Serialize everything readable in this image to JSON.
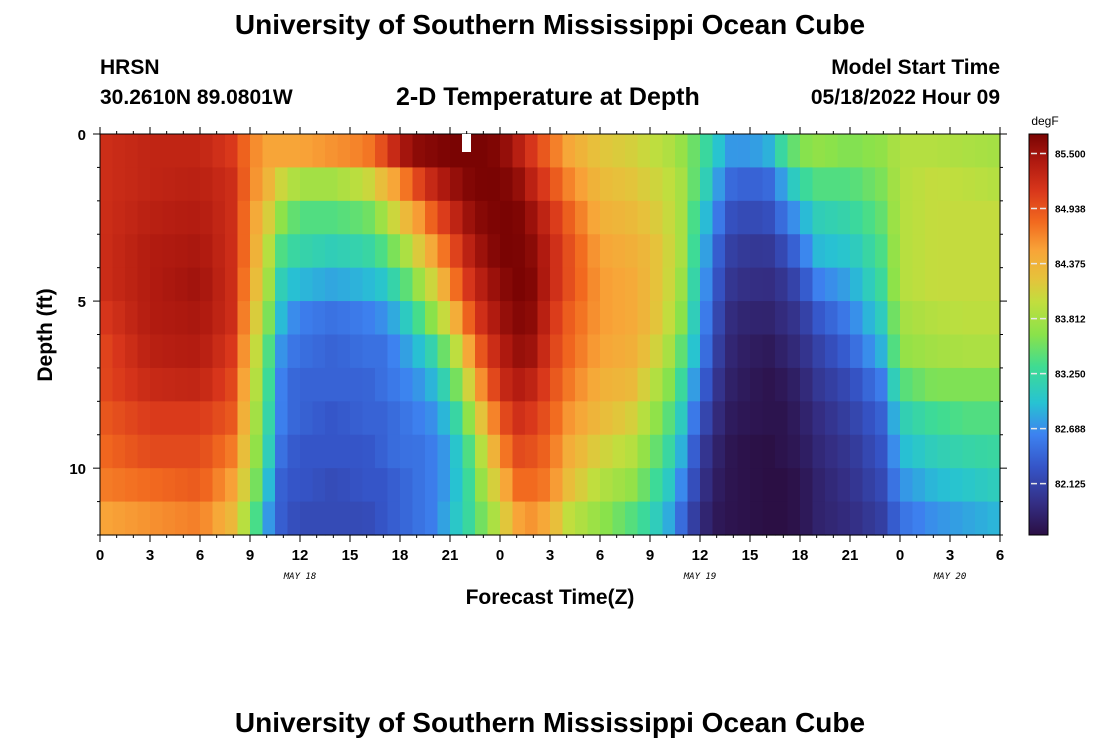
{
  "header": {
    "title": "University of Southern Mississippi Ocean Cube",
    "station": "HRSN",
    "coords": "30.2610N  89.0801W",
    "subtitle": "2-D Temperature at Depth",
    "start_label": "Model Start Time",
    "start_value": "05/18/2022 Hour 09"
  },
  "footer": {
    "title": "University of Southern Mississippi Ocean Cube"
  },
  "chart_data": {
    "type": "heatmap",
    "title": "2-D Temperature at Depth",
    "xlabel": "Forecast Time(Z)",
    "ylabel": "Depth (ft)",
    "x_unit": "hours since 05/18/2022 00Z",
    "xlim": [
      0,
      54
    ],
    "ylim": [
      0,
      12
    ],
    "y_inverted": true,
    "x_tick_labels": [
      "0",
      "3",
      "6",
      "9",
      "12",
      "15",
      "18",
      "21",
      "0",
      "3",
      "6",
      "9",
      "12",
      "15",
      "18",
      "21",
      "0",
      "3",
      "6"
    ],
    "y_tick_labels": [
      "0",
      "5",
      "10"
    ],
    "y_ticks": [
      0,
      5,
      10
    ],
    "date_labels": [
      {
        "label": "MAY 18",
        "hour": 12
      },
      {
        "label": "MAY 19",
        "hour": 36
      },
      {
        "label": "MAY 20",
        "hour": 51
      }
    ],
    "colorbar": {
      "unit": "degF",
      "min": 81.6,
      "max": 85.7,
      "labels": [
        "85.500",
        "84.938",
        "84.375",
        "83.812",
        "83.250",
        "82.688",
        "82.125"
      ],
      "values": [
        85.5,
        84.938,
        84.375,
        83.812,
        83.25,
        82.688,
        82.125
      ]
    },
    "grid": false,
    "z_units": "degF",
    "depth_rows_ft": [
      0.5,
      1.5,
      2.5,
      3.5,
      4.5,
      5.5,
      6.5,
      7.5,
      8.5,
      9.5,
      10.5,
      11.5
    ],
    "time_keyframes_hours": [
      0,
      3,
      6,
      8,
      9,
      10,
      11,
      12,
      14,
      16,
      17,
      18,
      19,
      20,
      21,
      22,
      23,
      24,
      25,
      26,
      27,
      28,
      30,
      32,
      33,
      34,
      35,
      36,
      37,
      38,
      40,
      41,
      42,
      43,
      45,
      47,
      48,
      50,
      52,
      54
    ],
    "time_keyframe_values": [
      [
        85.2,
        85.2,
        85.2,
        85.2,
        85.2,
        85.1,
        85.0,
        85.0,
        84.9,
        84.8,
        84.7,
        84.5
      ],
      [
        85.3,
        85.3,
        85.35,
        85.4,
        85.4,
        85.4,
        85.35,
        85.25,
        85.1,
        85.0,
        84.8,
        84.6
      ],
      [
        85.3,
        85.35,
        85.4,
        85.45,
        85.5,
        85.45,
        85.4,
        85.3,
        85.1,
        85.0,
        84.9,
        84.7
      ],
      [
        85.1,
        85.2,
        85.2,
        85.2,
        85.2,
        85.2,
        85.1,
        85.0,
        84.9,
        84.7,
        84.5,
        84.3
      ],
      [
        84.7,
        84.7,
        84.6,
        84.6,
        84.5,
        84.4,
        84.3,
        84.2,
        84.1,
        84.0,
        83.9,
        83.7
      ],
      [
        84.5,
        84.4,
        84.2,
        84.0,
        83.9,
        83.7,
        83.5,
        83.4,
        83.3,
        83.2,
        83.0,
        82.8
      ],
      [
        84.5,
        84.0,
        83.6,
        83.3,
        83.0,
        82.8,
        82.6,
        82.5,
        82.5,
        82.4,
        82.3,
        82.3
      ],
      [
        84.5,
        83.8,
        83.4,
        83.2,
        82.9,
        82.6,
        82.5,
        82.4,
        82.4,
        82.3,
        82.3,
        82.2
      ],
      [
        84.6,
        83.8,
        83.4,
        83.1,
        82.8,
        82.5,
        82.4,
        82.4,
        82.3,
        82.3,
        82.2,
        82.2
      ],
      [
        84.7,
        84.0,
        83.5,
        83.2,
        82.9,
        82.6,
        82.5,
        82.4,
        82.4,
        82.3,
        82.3,
        82.2
      ],
      [
        85.0,
        84.3,
        83.8,
        83.4,
        83.0,
        82.7,
        82.5,
        82.5,
        82.4,
        82.4,
        82.3,
        82.3
      ],
      [
        85.4,
        84.6,
        84.2,
        83.7,
        83.3,
        82.9,
        82.7,
        82.6,
        82.5,
        82.5,
        82.4,
        82.4
      ],
      [
        85.6,
        85.0,
        84.5,
        84.1,
        83.7,
        83.3,
        82.9,
        82.7,
        82.6,
        82.5,
        82.5,
        82.5
      ],
      [
        85.65,
        85.3,
        84.9,
        84.5,
        84.1,
        83.7,
        83.2,
        82.9,
        82.7,
        82.6,
        82.6,
        82.6
      ],
      [
        85.7,
        85.5,
        85.2,
        84.9,
        84.6,
        84.2,
        83.7,
        83.3,
        83.0,
        82.8,
        82.8,
        82.9
      ],
      [
        85.7,
        85.65,
        85.5,
        85.3,
        85.1,
        84.8,
        84.4,
        84.0,
        83.6,
        83.3,
        83.2,
        83.2
      ],
      [
        85.7,
        85.7,
        85.65,
        85.55,
        85.4,
        85.25,
        85.0,
        84.7,
        84.3,
        84.0,
        83.8,
        83.6
      ],
      [
        85.65,
        85.7,
        85.7,
        85.7,
        85.6,
        85.5,
        85.35,
        85.2,
        84.9,
        84.6,
        84.3,
        84.0
      ],
      [
        85.4,
        85.6,
        85.7,
        85.7,
        85.7,
        85.65,
        85.55,
        85.4,
        85.2,
        85.0,
        84.8,
        84.5
      ],
      [
        85.1,
        85.3,
        85.5,
        85.6,
        85.65,
        85.6,
        85.5,
        85.3,
        85.1,
        84.95,
        84.8,
        84.6
      ],
      [
        84.8,
        85.0,
        85.2,
        85.3,
        85.3,
        85.2,
        85.1,
        85.0,
        84.9,
        84.8,
        84.7,
        84.4
      ],
      [
        84.5,
        84.7,
        84.9,
        85.0,
        85.0,
        84.9,
        84.85,
        84.75,
        84.6,
        84.45,
        84.3,
        84.0
      ],
      [
        84.2,
        84.3,
        84.4,
        84.5,
        84.55,
        84.55,
        84.5,
        84.4,
        84.3,
        84.1,
        83.9,
        83.7
      ],
      [
        84.1,
        84.2,
        84.3,
        84.4,
        84.45,
        84.45,
        84.4,
        84.3,
        84.1,
        83.9,
        83.7,
        83.4
      ],
      [
        84.0,
        84.1,
        84.2,
        84.3,
        84.3,
        84.3,
        84.2,
        84.0,
        83.8,
        83.6,
        83.4,
        83.2
      ],
      [
        83.9,
        84.0,
        84.05,
        84.1,
        84.1,
        84.05,
        83.9,
        83.7,
        83.5,
        83.3,
        83.1,
        82.9
      ],
      [
        83.7,
        83.8,
        83.8,
        83.8,
        83.7,
        83.6,
        83.4,
        83.2,
        83.0,
        82.8,
        82.6,
        82.4
      ],
      [
        83.4,
        83.3,
        83.1,
        83.0,
        82.9,
        82.8,
        82.7,
        82.5,
        82.3,
        82.1,
        82.0,
        81.9
      ],
      [
        83.0,
        82.8,
        82.6,
        82.4,
        82.3,
        82.2,
        82.1,
        82.0,
        81.9,
        81.8,
        81.75,
        81.7
      ],
      [
        82.7,
        82.4,
        82.2,
        82.05,
        81.95,
        81.85,
        81.8,
        81.75,
        81.7,
        81.65,
        81.65,
        81.65
      ],
      [
        82.8,
        82.4,
        82.2,
        82.0,
        81.9,
        81.8,
        81.7,
        81.65,
        81.65,
        81.6,
        81.6,
        81.6
      ],
      [
        83.3,
        82.8,
        82.5,
        82.2,
        82.0,
        81.9,
        81.8,
        81.7,
        81.65,
        81.65,
        81.6,
        81.6
      ],
      [
        83.6,
        83.2,
        82.8,
        82.5,
        82.2,
        82.0,
        81.9,
        81.8,
        81.75,
        81.7,
        81.65,
        81.65
      ],
      [
        83.7,
        83.4,
        83.1,
        82.9,
        82.6,
        82.3,
        82.1,
        82.0,
        81.9,
        81.85,
        81.8,
        81.8
      ],
      [
        83.6,
        83.4,
        83.2,
        83.0,
        82.8,
        82.6,
        82.4,
        82.2,
        82.1,
        82.0,
        81.95,
        81.9
      ],
      [
        83.7,
        83.6,
        83.5,
        83.4,
        83.3,
        83.1,
        82.9,
        82.6,
        82.4,
        82.3,
        82.2,
        82.1
      ],
      [
        83.9,
        83.9,
        83.9,
        83.9,
        83.9,
        83.8,
        83.7,
        83.4,
        83.1,
        82.9,
        82.7,
        82.5
      ],
      [
        83.9,
        84.0,
        84.0,
        84.0,
        84.0,
        83.9,
        83.8,
        83.6,
        83.3,
        83.1,
        82.9,
        82.7
      ],
      [
        83.85,
        83.95,
        84.0,
        84.0,
        84.0,
        83.95,
        83.85,
        83.6,
        83.4,
        83.2,
        83.0,
        82.8
      ],
      [
        83.8,
        83.9,
        84.0,
        84.0,
        84.0,
        83.95,
        83.85,
        83.6,
        83.4,
        83.25,
        83.1,
        82.9
      ]
    ]
  }
}
